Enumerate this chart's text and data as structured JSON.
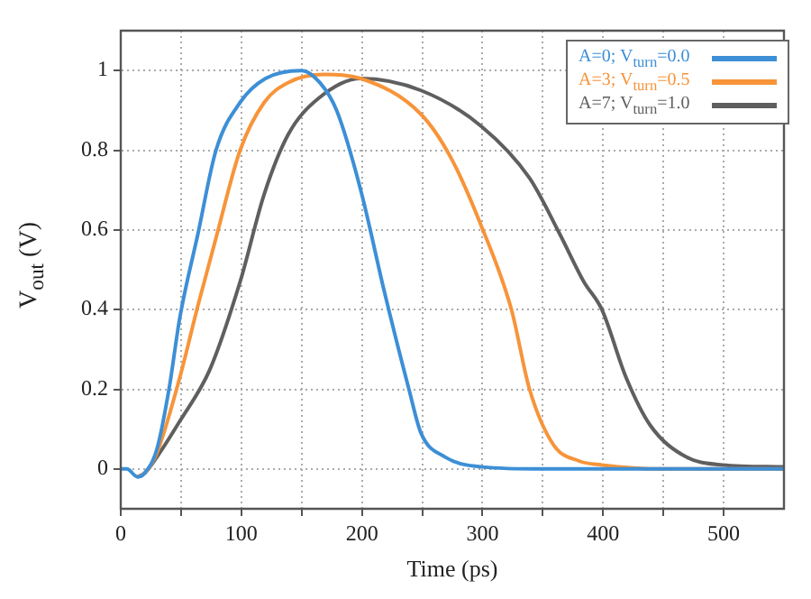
{
  "chart_data": {
    "type": "line",
    "xlabel": "Time (ps)",
    "ylabel": "V$_{out}$ (V)",
    "xlim": [
      0,
      550
    ],
    "ylim": [
      -0.1,
      1.1
    ],
    "xticks": [
      0,
      {
        "value": 50,
        "label": null
      },
      100,
      {
        "value": 150,
        "label": null
      },
      200,
      {
        "value": 250,
        "label": null
      },
      300,
      {
        "value": 350,
        "label": null
      },
      400,
      {
        "value": 450,
        "label": null
      },
      500
    ],
    "yticks": [
      0,
      0.2,
      0.4,
      0.6,
      0.8,
      1
    ],
    "grid": true,
    "legend": "top right",
    "marker": "none",
    "line_style": "solid",
    "series": [
      {
        "name": "A=0; V$_{turn}$=0.0",
        "color": "#3d8fd6",
        "x": [
          0,
          5,
          14,
          20,
          30,
          40,
          49,
          64,
          79,
          99,
          120,
          150,
          165,
          179,
          199,
          219,
          239,
          249,
          269,
          300,
          350,
          400,
          550
        ],
        "values": [
          0,
          0,
          -0.02,
          -0.01,
          0.05,
          0.2,
          0.38,
          0.59,
          0.8,
          0.92,
          0.98,
          1.0,
          0.97,
          0.9,
          0.7,
          0.44,
          0.2,
          0.09,
          0.03,
          0.005,
          0,
          0,
          0
        ]
      },
      {
        "name": "A=3; V$_{turn}$=0.5",
        "color": "#f7943a",
        "x": [
          14,
          20,
          30,
          49,
          64,
          79,
          99,
          119,
          139,
          169,
          199,
          249,
          274,
          299,
          324,
          339,
          359,
          380,
          399,
          450,
          550
        ],
        "values": [
          -0.02,
          -0.01,
          0.04,
          0.23,
          0.41,
          0.58,
          0.8,
          0.92,
          0.97,
          0.99,
          0.98,
          0.89,
          0.78,
          0.61,
          0.4,
          0.2,
          0.06,
          0.02,
          0.01,
          0,
          0
        ]
      },
      {
        "name": "A=7; V$_{turn}$=1.0",
        "color": "#5f5f5f",
        "x": [
          14,
          20,
          30,
          49,
          74,
          99,
          119,
          139,
          164,
          199,
          249,
          299,
          339,
          364,
          384,
          399,
          419,
          439,
          469,
          499,
          550
        ],
        "values": [
          -0.02,
          -0.01,
          0.03,
          0.12,
          0.25,
          0.47,
          0.69,
          0.84,
          0.93,
          0.98,
          0.95,
          0.86,
          0.73,
          0.59,
          0.47,
          0.4,
          0.23,
          0.11,
          0.03,
          0.01,
          0.005
        ]
      }
    ]
  }
}
